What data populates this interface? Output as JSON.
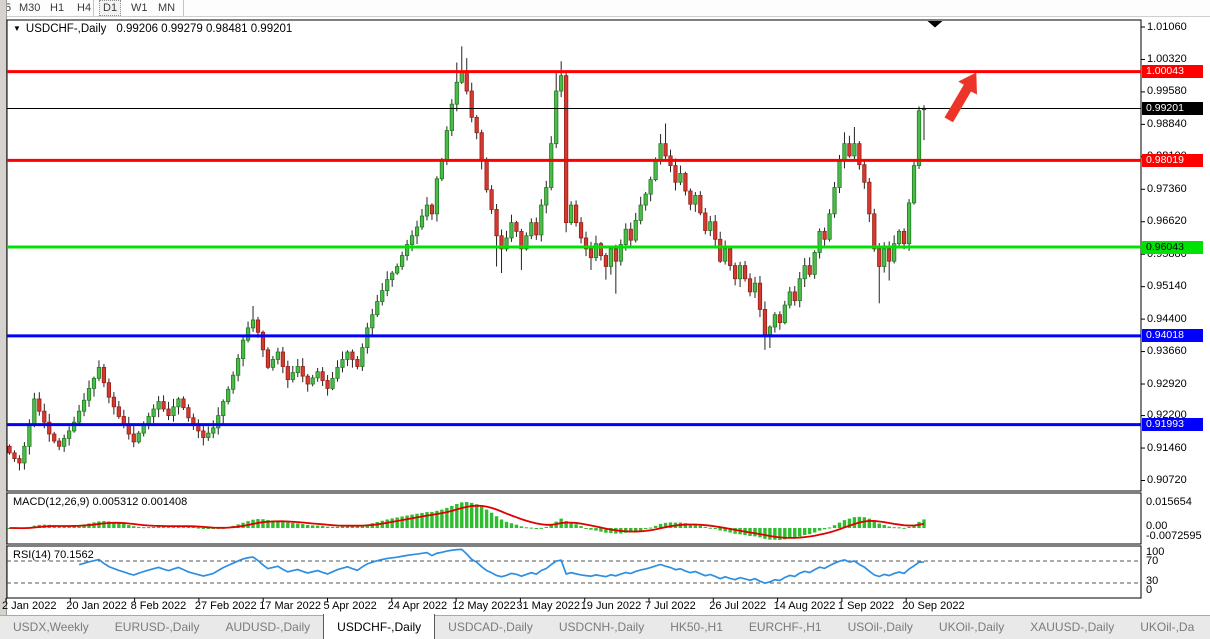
{
  "window": {
    "timeframe_toolbar": {
      "items": [
        "5",
        "M30",
        "H1",
        "H4",
        "D1",
        "W1",
        "MN"
      ],
      "active": "D1"
    }
  },
  "chart": {
    "dropdown_icon": "▼",
    "title_symbol": "USDCHF-,Daily",
    "title_ohlc": "0.99206 0.99279 0.98481 0.99201"
  },
  "price_axis": {
    "ticks": [
      "1.01060",
      "1.00320",
      "0.99580",
      "0.98840",
      "0.98100",
      "0.97360",
      "0.96620",
      "0.95880",
      "0.95140",
      "0.94400",
      "0.93660",
      "0.92920",
      "0.92200",
      "0.91460",
      "0.90720"
    ]
  },
  "levels": [
    {
      "value": "1.00043",
      "price": 1.00043,
      "color": "#fe0000",
      "text_color": "#ffffff"
    },
    {
      "value": "0.98019",
      "price": 0.98019,
      "color": "#fe0000",
      "text_color": "#ffffff"
    },
    {
      "value": "0.96043",
      "price": 0.96043,
      "color": "#00e205",
      "text_color": "#000000"
    },
    {
      "value": "0.94018",
      "price": 0.94018,
      "color": "#0100fc",
      "text_color": "#ffffff"
    },
    {
      "value": "0.91993",
      "price": 0.91993,
      "color": "#0100fc",
      "text_color": "#ffffff"
    }
  ],
  "current_price": {
    "value": "0.99201",
    "price": 0.99201,
    "color": "#000000",
    "text_color": "#ffffff"
  },
  "indicators": {
    "macd": {
      "label": "MACD(12,26,9) 0.005312 0.001408",
      "axis_labels": [
        "0.015654",
        "0.00",
        "-0.0072595"
      ],
      "histogram_color": "#2ebd2e",
      "signal_color": "#e00000"
    },
    "rsi": {
      "label": "RSI(14) 70.1562",
      "axis_labels": [
        "100",
        "70",
        "30",
        "0"
      ],
      "level_lines": [
        70,
        30
      ],
      "line_color": "#2e8fe0"
    }
  },
  "date_axis": {
    "labels": [
      "2 Jan 2022",
      "20 Jan 2022",
      "8 Feb 2022",
      "27 Feb 2022",
      "17 Mar 2022",
      "5 Apr 2022",
      "24 Apr 2022",
      "12 May 2022",
      "31 May 2022",
      "19 Jun 2022",
      "7 Jul 2022",
      "26 Jul 2022",
      "14 Aug 2022",
      "1 Sep 2022",
      "20 Sep 2022"
    ]
  },
  "tab_bar": {
    "tabs": [
      "USDX,Weekly",
      "EURUSD-,Daily",
      "AUDUSD-,Daily",
      "USDCHF-,Daily",
      "USDCAD-,Daily",
      "USDCNH-,Daily",
      "HK50-,H1",
      "EURCHF-,H1",
      "USOil-,Daily",
      "UKOil-,Daily",
      "XAUUSD-,Daily",
      "UKOil-,Da"
    ],
    "active": "USDCHF-,Daily",
    "scroll_left_icon": "◄",
    "scroll_right_icon": "►"
  },
  "annotations": {
    "arrow_color": "#ec3528",
    "shift_marker_color": "#000000"
  },
  "chart_data": {
    "type": "candlestick",
    "symbol": "USDCHF-,Daily",
    "timeframe": "Daily",
    "last_bar": {
      "open": 0.99206,
      "high": 0.99279,
      "low": 0.98481,
      "close": 0.99201
    },
    "price_axis_top": 1.0106,
    "price_axis_bottom": 0.9072,
    "price_axis_step": 0.0074,
    "open_first": 0.915,
    "closes": [
      0.9135,
      0.9122,
      0.9112,
      0.915,
      0.92,
      0.9258,
      0.923,
      0.9205,
      0.9178,
      0.9162,
      0.915,
      0.9168,
      0.9185,
      0.9205,
      0.923,
      0.9255,
      0.9282,
      0.9305,
      0.933,
      0.9295,
      0.9262,
      0.924,
      0.9218,
      0.92,
      0.9178,
      0.916,
      0.918,
      0.92,
      0.9218,
      0.9235,
      0.9252,
      0.9235,
      0.922,
      0.924,
      0.9258,
      0.9238,
      0.9215,
      0.92,
      0.9185,
      0.917,
      0.918,
      0.9192,
      0.922,
      0.9252,
      0.928,
      0.9312,
      0.935,
      0.9392,
      0.942,
      0.9438,
      0.941,
      0.937,
      0.933,
      0.9348,
      0.9365,
      0.9332,
      0.9302,
      0.9318,
      0.9332,
      0.931,
      0.9292,
      0.9306,
      0.932,
      0.93,
      0.9282,
      0.9305,
      0.933,
      0.9348,
      0.9365,
      0.9348,
      0.9332,
      0.9375,
      0.942,
      0.945,
      0.948,
      0.9505,
      0.953,
      0.9545,
      0.956,
      0.9585,
      0.961,
      0.963,
      0.965,
      0.9675,
      0.97,
      0.968,
      0.976,
      0.98,
      0.987,
      0.993,
      0.998,
      1.0005,
      0.996,
      0.99,
      0.9865,
      0.98,
      0.9735,
      0.969,
      0.963,
      0.96,
      0.9625,
      0.966,
      0.964,
      0.96,
      0.963,
      0.966,
      0.9632,
      0.97,
      0.974,
      0.984,
      0.996,
      0.9995,
      0.966,
      0.97,
      0.966,
      0.9625,
      0.96,
      0.958,
      0.9612,
      0.9585,
      0.956,
      0.96,
      0.9572,
      0.961,
      0.9645,
      0.962,
      0.9665,
      0.97,
      0.9725,
      0.9758,
      0.98,
      0.984,
      0.9812,
      0.979,
      0.9752,
      0.9772,
      0.9732,
      0.9702,
      0.9722,
      0.9682,
      0.9642,
      0.9662,
      0.9622,
      0.9572,
      0.96,
      0.9562,
      0.9532,
      0.9562,
      0.9532,
      0.9502,
      0.9522,
      0.9462,
      0.9405,
      0.9422,
      0.945,
      0.9432,
      0.9472,
      0.9502,
      0.9482,
      0.9532,
      0.9562,
      0.9542,
      0.9592,
      0.964,
      0.9622,
      0.968,
      0.974,
      0.98,
      0.984,
      0.9812,
      0.984,
      0.9792,
      0.9752,
      0.968,
      0.96,
      0.956,
      0.96,
      0.9572,
      0.9612,
      0.964,
      0.9612,
      0.9705,
      0.979,
      0.9915,
      0.99201
    ],
    "open_overrides": {
      "184": 0.99206
    },
    "wick_overrides": {
      "2": {
        "l": 0.9095
      },
      "5": {
        "h": 0.9272
      },
      "18": {
        "h": 0.9346
      },
      "25": {
        "l": 0.9148
      },
      "39": {
        "l": 0.9152
      },
      "49": {
        "h": 0.947
      },
      "50": {
        "h": 0.9445
      },
      "90": {
        "h": 1.0025
      },
      "91": {
        "h": 1.0062
      },
      "92": {
        "h": 1.0035
      },
      "98": {
        "l": 0.956
      },
      "99": {
        "l": 0.9545
      },
      "103": {
        "l": 0.9552
      },
      "110": {
        "h": 1.0005
      },
      "111": {
        "h": 1.0028
      },
      "112": {
        "l": 0.9638
      },
      "117": {
        "l": 0.9552
      },
      "120": {
        "l": 0.953
      },
      "122": {
        "l": 0.9498
      },
      "131": {
        "h": 0.9862
      },
      "132": {
        "h": 0.9886
      },
      "152": {
        "l": 0.937
      },
      "153": {
        "l": 0.9374
      },
      "168": {
        "h": 0.9866
      },
      "170": {
        "h": 0.9878
      },
      "175": {
        "l": 0.9476
      },
      "177": {
        "l": 0.9528
      },
      "183": {
        "h": 0.9925
      },
      "184": {
        "h": 0.99279,
        "l": 0.98481
      }
    },
    "up_color": "#4cbb4c",
    "down_color": "#d23b32",
    "wick_color": "#222222"
  }
}
